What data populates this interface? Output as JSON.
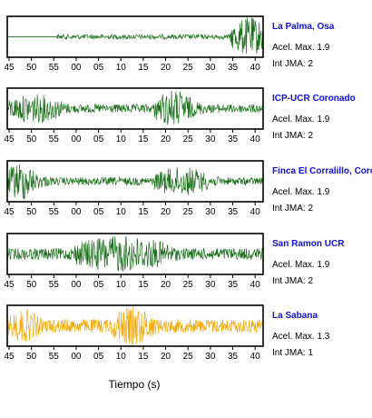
{
  "chart_data": {
    "type": "line",
    "xlabel": "Tiempo (s)",
    "x_tick_labels": [
      "45",
      "50",
      "55",
      "00",
      "05",
      "10",
      "15",
      "20",
      "25",
      "30",
      "35",
      "40"
    ],
    "colors": {
      "trace": "#1a6e1a",
      "trace_highlight": "#f5a800",
      "station_name": "#1010e0",
      "frame": "#000000"
    },
    "panels": [
      {
        "station": "La Palma, Osa",
        "accel_label": "Acel. Max. 1.9",
        "jma_label": "Int JMA: 2",
        "color": "#1a6e1a",
        "show_ticks": true,
        "onset": 9,
        "bursts": [
          [
            41,
            48,
            1.0
          ]
        ],
        "base": 0.12,
        "flat_line": true
      },
      {
        "station": "ICP-UCR Coronado",
        "accel_label": "Acel. Max. 1.9",
        "jma_label": "Int JMA: 2",
        "color": "#1a6e1a",
        "show_ticks": true,
        "onset": 0,
        "bursts": [
          [
            0,
            10,
            0.75
          ],
          [
            27,
            34,
            0.95
          ]
        ],
        "base": 0.22
      },
      {
        "station": "Finca El Corralillo, Coronado",
        "accel_label": "Acel. Max. 1.9",
        "jma_label": "Int JMA: 2",
        "color": "#1a6e1a",
        "show_ticks": true,
        "onset": 0,
        "bursts": [
          [
            0,
            5,
            1.0
          ],
          [
            27,
            37,
            0.75
          ]
        ],
        "base": 0.2
      },
      {
        "station": "San Ramon UCR",
        "accel_label": "Acel. Max. 1.9",
        "jma_label": "Int JMA: 2",
        "color": "#1a6e1a",
        "show_ticks": true,
        "onset": 0,
        "bursts": [
          [
            12,
            30,
            0.95
          ]
        ],
        "base": 0.3
      },
      {
        "station": "La Sabana",
        "accel_label": "Acel. Max. 1.3",
        "jma_label": "Int JMA: 1",
        "color": "#f5a800",
        "show_ticks": false,
        "onset": 0,
        "bursts": [
          [
            0,
            6,
            0.85
          ],
          [
            19,
            27,
            1.0
          ]
        ],
        "base": 0.35
      }
    ]
  }
}
